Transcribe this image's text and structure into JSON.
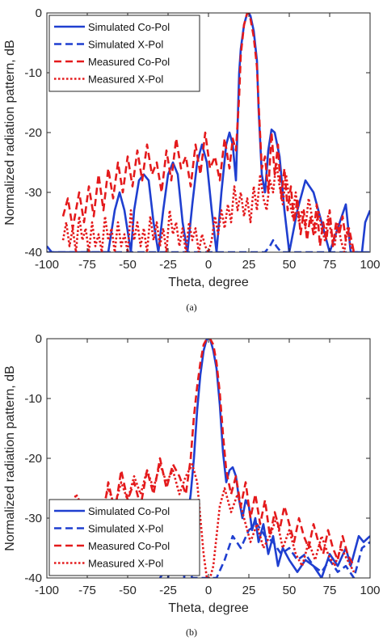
{
  "colors": {
    "blue": "#1f3fd0",
    "red": "#e41a1c",
    "axis": "#262626"
  },
  "captions": [
    "(a)",
    "(b)"
  ],
  "chart_data": [
    {
      "type": "line",
      "caption": "(a)",
      "xlabel": "Theta, degree",
      "ylabel": "Normalized radiation pattern, dB",
      "xlim": [
        -100,
        100
      ],
      "ylim": [
        -40,
        0
      ],
      "xticks": [
        -100,
        -75,
        -50,
        -25,
        0,
        25,
        50,
        75,
        100
      ],
      "yticks": [
        -40,
        -30,
        -20,
        -10,
        0
      ],
      "legend_position": "top-left",
      "series": [
        {
          "name": "Simulated Co-Pol",
          "color": "#1f3fd0",
          "style": "solid",
          "x": [
            -100,
            -97,
            -95,
            -90,
            -80,
            -70,
            -62,
            -58,
            -55,
            -52,
            -48,
            -46,
            -43,
            -40,
            -37,
            -34,
            -31,
            -28,
            -25,
            -22,
            -19,
            -16,
            -13,
            -10,
            -7,
            -4,
            -1,
            2,
            5,
            8,
            11,
            13,
            15,
            17,
            19,
            20,
            22,
            24,
            25,
            26,
            28,
            30,
            31,
            33,
            35,
            37,
            39,
            41,
            44,
            47,
            50,
            55,
            60,
            65,
            70,
            75,
            80,
            85,
            88,
            92,
            95,
            97,
            100
          ],
          "y": [
            -39,
            -40,
            -40,
            -40,
            -40,
            -40,
            -40,
            -33,
            -30,
            -33,
            -40,
            -33,
            -28,
            -27,
            -28,
            -35,
            -40,
            -33,
            -27,
            -25,
            -27,
            -35,
            -40,
            -32,
            -25,
            -22,
            -25,
            -33,
            -40,
            -30,
            -22,
            -20,
            -22,
            -28,
            -10,
            -6,
            -2,
            0,
            0,
            -0.5,
            -3,
            -8,
            -16,
            -27,
            -30,
            -23,
            -19.5,
            -20,
            -24,
            -33,
            -40,
            -33,
            -28,
            -30,
            -35,
            -40,
            -36,
            -32,
            -40,
            -40,
            -40,
            -35,
            -33
          ]
        },
        {
          "name": "Simulated X-Pol",
          "color": "#1f3fd0",
          "style": "dashed",
          "x": [
            -100,
            -90,
            -80,
            -70,
            -60,
            -50,
            -40,
            -30,
            -20,
            -10,
            0,
            10,
            20,
            25,
            30,
            35,
            38,
            40,
            42,
            45,
            50,
            60,
            70,
            80,
            90,
            100
          ],
          "y": [
            -40,
            -40,
            -40,
            -40,
            -40,
            -40,
            -40,
            -40,
            -40,
            -40,
            -40,
            -40,
            -40,
            -40,
            -40,
            -40,
            -39,
            -38,
            -39,
            -40,
            -40,
            -40,
            -40,
            -40,
            -40,
            -40
          ]
        },
        {
          "name": "Measured Co-Pol",
          "color": "#e41a1c",
          "style": "dashed",
          "x": [
            -90,
            -87,
            -84,
            -80,
            -77,
            -74,
            -71,
            -68,
            -65,
            -62,
            -59,
            -56,
            -53,
            -50,
            -47,
            -44,
            -41,
            -38,
            -35,
            -32,
            -29,
            -26,
            -23,
            -20,
            -17,
            -14,
            -11,
            -8,
            -5,
            -2,
            1,
            4,
            7,
            10,
            13,
            15,
            17,
            19,
            20,
            22,
            24,
            25,
            26,
            28,
            30,
            31,
            33,
            35,
            37,
            39,
            41,
            43,
            45,
            47,
            49,
            51,
            53,
            55,
            57,
            59,
            61,
            63,
            65,
            67,
            69,
            71,
            73,
            75,
            77,
            79,
            81,
            83,
            85,
            87,
            90
          ],
          "y": [
            -34,
            -31,
            -36,
            -30,
            -35,
            -29,
            -34,
            -27,
            -33,
            -26,
            -31,
            -25,
            -30,
            -24,
            -29,
            -23,
            -28,
            -22,
            -27,
            -25,
            -30,
            -23,
            -28,
            -21,
            -26,
            -24,
            -29,
            -22,
            -27,
            -20,
            -26,
            -24,
            -28,
            -21,
            -26,
            -21,
            -23,
            -14,
            -7,
            -2,
            0,
            0,
            -1,
            -4,
            -9,
            -15,
            -26,
            -24,
            -30,
            -20,
            -27,
            -22,
            -31,
            -26,
            -33,
            -29,
            -35,
            -31,
            -37,
            -33,
            -38,
            -34,
            -37,
            -32,
            -39,
            -35,
            -38,
            -33,
            -39,
            -35,
            -37,
            -34,
            -38,
            -36,
            -40
          ]
        },
        {
          "name": "Measured X-Pol",
          "color": "#e41a1c",
          "style": "dotted",
          "x": [
            -90,
            -88,
            -86,
            -84,
            -82,
            -80,
            -78,
            -76,
            -74,
            -72,
            -70,
            -68,
            -66,
            -64,
            -62,
            -60,
            -58,
            -56,
            -54,
            -52,
            -50,
            -48,
            -46,
            -44,
            -42,
            -40,
            -38,
            -36,
            -34,
            -32,
            -30,
            -28,
            -26,
            -24,
            -22,
            -20,
            -18,
            -16,
            -14,
            -12,
            -10,
            -8,
            -6,
            -4,
            -2,
            0,
            2,
            4,
            6,
            8,
            10,
            12,
            14,
            16,
            18,
            20,
            22,
            24,
            26,
            28,
            30,
            32,
            34,
            36,
            38,
            40,
            42,
            44,
            46,
            48,
            50,
            52,
            54,
            56,
            58,
            60,
            62,
            64,
            66,
            68,
            70,
            72,
            74,
            76,
            78,
            80,
            82,
            84,
            86,
            88,
            90
          ],
          "y": [
            -38,
            -35,
            -39,
            -36,
            -40,
            -34,
            -38,
            -36,
            -40,
            -35,
            -39,
            -37,
            -40,
            -34,
            -38,
            -36,
            -40,
            -35,
            -39,
            -37,
            -40,
            -33,
            -38,
            -35,
            -39,
            -36,
            -40,
            -34,
            -38,
            -35,
            -39,
            -36,
            -40,
            -33,
            -37,
            -35,
            -39,
            -36,
            -40,
            -35,
            -38,
            -36,
            -40,
            -37,
            -39,
            -40,
            -38,
            -34,
            -37,
            -33,
            -36,
            -32,
            -35,
            -29,
            -33,
            -30,
            -34,
            -31,
            -35,
            -29,
            -33,
            -27,
            -31,
            -33,
            -28,
            -30,
            -25,
            -29,
            -32,
            -27,
            -31,
            -34,
            -30,
            -35,
            -33,
            -36,
            -31,
            -34,
            -37,
            -33,
            -36,
            -38,
            -34,
            -37,
            -39,
            -35,
            -38,
            -40,
            -36,
            -39,
            -40
          ]
        }
      ]
    },
    {
      "type": "line",
      "caption": "(b)",
      "xlabel": "Theta, degree",
      "ylabel": "Normalized radiation pattern, dB",
      "xlim": [
        -100,
        100
      ],
      "ylim": [
        -40,
        0
      ],
      "xticks": [
        -100,
        -75,
        -50,
        -25,
        0,
        25,
        50,
        75,
        100
      ],
      "yticks": [
        -40,
        -30,
        -20,
        -10,
        0
      ],
      "legend_position": "bottom-left",
      "series": [
        {
          "name": "Simulated Co-Pol",
          "color": "#1f3fd0",
          "style": "solid",
          "x": [
            -25,
            -22,
            -19,
            -17,
            -15,
            -13,
            -11,
            -9,
            -7,
            -5,
            -3,
            -1,
            0,
            1,
            3,
            5,
            7,
            9,
            11,
            13,
            15,
            17,
            19,
            21,
            23,
            25,
            27,
            29,
            31,
            34,
            37,
            40,
            43,
            46,
            50,
            55,
            60,
            65,
            70,
            75,
            80,
            85,
            88,
            90,
            93,
            96,
            100
          ],
          "y": [
            -40,
            -34,
            -28,
            -31,
            -40,
            -30,
            -26,
            -20,
            -12,
            -6,
            -2,
            0,
            0,
            0,
            -2,
            -5,
            -11,
            -19,
            -24,
            -22,
            -21.5,
            -23,
            -27,
            -30,
            -27,
            -28,
            -32,
            -30,
            -34,
            -31,
            -36,
            -33,
            -38,
            -35,
            -37,
            -39,
            -37,
            -38,
            -40,
            -36,
            -38,
            -35,
            -38,
            -36,
            -33,
            -34,
            -33
          ]
        },
        {
          "name": "Simulated X-Pol",
          "color": "#1f3fd0",
          "style": "dashed",
          "x": [
            -30,
            -25,
            -20,
            -15,
            -10,
            -5,
            0,
            5,
            10,
            15,
            20,
            25,
            30,
            35,
            40,
            45,
            50,
            55,
            60,
            65,
            70,
            75,
            80,
            85,
            90,
            95,
            100
          ],
          "y": [
            -40,
            -38,
            -36,
            -37,
            -40,
            -40,
            -40,
            -40,
            -37,
            -33,
            -35,
            -32,
            -31,
            -33,
            -34,
            -36,
            -35,
            -37,
            -36,
            -38,
            -39,
            -37,
            -39,
            -38,
            -40,
            -35,
            -34
          ]
        },
        {
          "name": "Measured Co-Pol",
          "color": "#e41a1c",
          "style": "dashed",
          "x": [
            -90,
            -86,
            -82,
            -78,
            -74,
            -70,
            -66,
            -62,
            -58,
            -54,
            -50,
            -46,
            -42,
            -38,
            -34,
            -30,
            -26,
            -22,
            -18,
            -14,
            -11,
            -9,
            -7,
            -5,
            -3,
            -1,
            0,
            1,
            3,
            5,
            7,
            9,
            11,
            14,
            17,
            20,
            23,
            26,
            29,
            32,
            35,
            38,
            41,
            44,
            47,
            50,
            53,
            56,
            59,
            62,
            65,
            68,
            71,
            74,
            77,
            80,
            83,
            86,
            90
          ],
          "y": [
            -30,
            -27,
            -32,
            -29,
            -33,
            -27,
            -31,
            -24,
            -29,
            -22,
            -27,
            -24,
            -28,
            -22,
            -26,
            -20,
            -25,
            -21,
            -23,
            -26,
            -20,
            -13,
            -8,
            -4,
            -1,
            0,
            0,
            0,
            -1,
            -4,
            -9,
            -16,
            -22,
            -26,
            -23,
            -28,
            -24,
            -30,
            -26,
            -31,
            -27,
            -33,
            -29,
            -32,
            -28,
            -31,
            -34,
            -30,
            -33,
            -35,
            -31,
            -34,
            -36,
            -32,
            -35,
            -37,
            -33,
            -36,
            -38
          ]
        },
        {
          "name": "Measured X-Pol",
          "color": "#e41a1c",
          "style": "dotted",
          "x": [
            -90,
            -86,
            -82,
            -78,
            -74,
            -70,
            -66,
            -62,
            -58,
            -54,
            -50,
            -46,
            -42,
            -38,
            -34,
            -30,
            -26,
            -22,
            -18,
            -14,
            -10,
            -7,
            -5,
            -3,
            -1,
            0,
            1,
            3,
            5,
            7,
            10,
            14,
            18,
            22,
            26,
            30,
            34,
            38,
            42,
            46,
            50,
            54,
            58,
            62,
            66,
            70,
            74,
            78,
            82,
            86,
            90
          ],
          "y": [
            -27,
            -30,
            -26,
            -28,
            -31,
            -27,
            -29,
            -25,
            -28,
            -24,
            -27,
            -23,
            -26,
            -22,
            -25,
            -21,
            -24,
            -22,
            -26,
            -23,
            -21,
            -24,
            -30,
            -36,
            -40,
            -40,
            -40,
            -38,
            -33,
            -28,
            -25,
            -29,
            -26,
            -30,
            -34,
            -31,
            -35,
            -33,
            -30,
            -35,
            -32,
            -36,
            -38,
            -34,
            -37,
            -33,
            -36,
            -38,
            -35,
            -37,
            -39
          ]
        }
      ]
    }
  ]
}
